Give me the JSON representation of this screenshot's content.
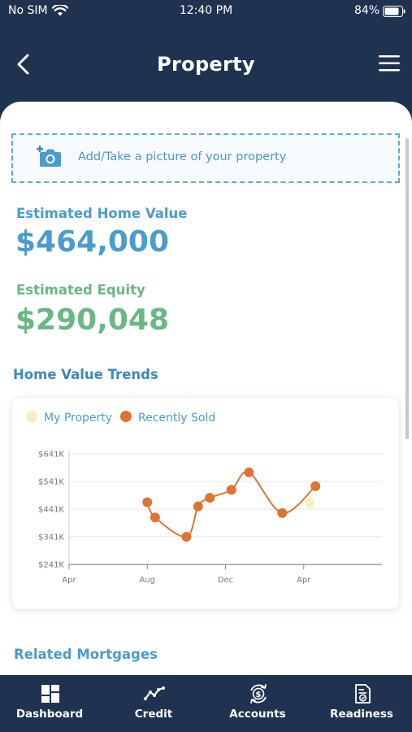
{
  "status_bar": {
    "carrier": "No SIM",
    "time": "12:40 PM",
    "battery": "84%"
  },
  "header": {
    "title": "Property",
    "back_icon": "chevron-left-icon",
    "menu_icon": "hamburger-menu-icon"
  },
  "upload": {
    "label": "Add/Take a picture of your property",
    "icon": "add-camera-icon"
  },
  "home_value": {
    "label": "Estimated Home Value",
    "value": "$464,000"
  },
  "equity": {
    "label": "Estimated Equity",
    "value": "$290,048"
  },
  "trends": {
    "title": "Home Value Trends"
  },
  "related": {
    "title": "Related Mortgages"
  },
  "colors": {
    "navy": "#1f3250",
    "blue": "#4a9ccc",
    "green": "#6ab783",
    "orange": "#dd7431",
    "cream": "#f7efc2"
  },
  "chart_data": {
    "type": "line",
    "title": "",
    "xlabel": "",
    "ylabel": "",
    "y_ticks": [
      "$641K",
      "$541K",
      "$441K",
      "$341K",
      "$241K"
    ],
    "x_ticks": [
      "Apr",
      "Aug",
      "Dec",
      "Apr"
    ],
    "ylim": [
      241,
      641
    ],
    "y_unit": "K",
    "grid": true,
    "legend_position": "top-left",
    "series": [
      {
        "name": "My Property",
        "color": "#f7efc2",
        "x": [
          12.3
        ],
        "y": [
          464
        ]
      },
      {
        "name": "Recently Sold",
        "color": "#dd7431",
        "x": [
          4.0,
          4.4,
          6.0,
          6.6,
          7.2,
          8.3,
          9.2,
          10.9,
          12.6
        ],
        "y": [
          466,
          411,
          341,
          451,
          482,
          511,
          574,
          427,
          524
        ]
      }
    ]
  },
  "nav": {
    "items": [
      {
        "label": "Dashboard",
        "icon": "dashboard-grid-icon"
      },
      {
        "label": "Credit",
        "icon": "credit-trend-icon"
      },
      {
        "label": "Accounts",
        "icon": "accounts-dollar-icon"
      },
      {
        "label": "Readiness",
        "icon": "readiness-document-icon"
      }
    ]
  }
}
